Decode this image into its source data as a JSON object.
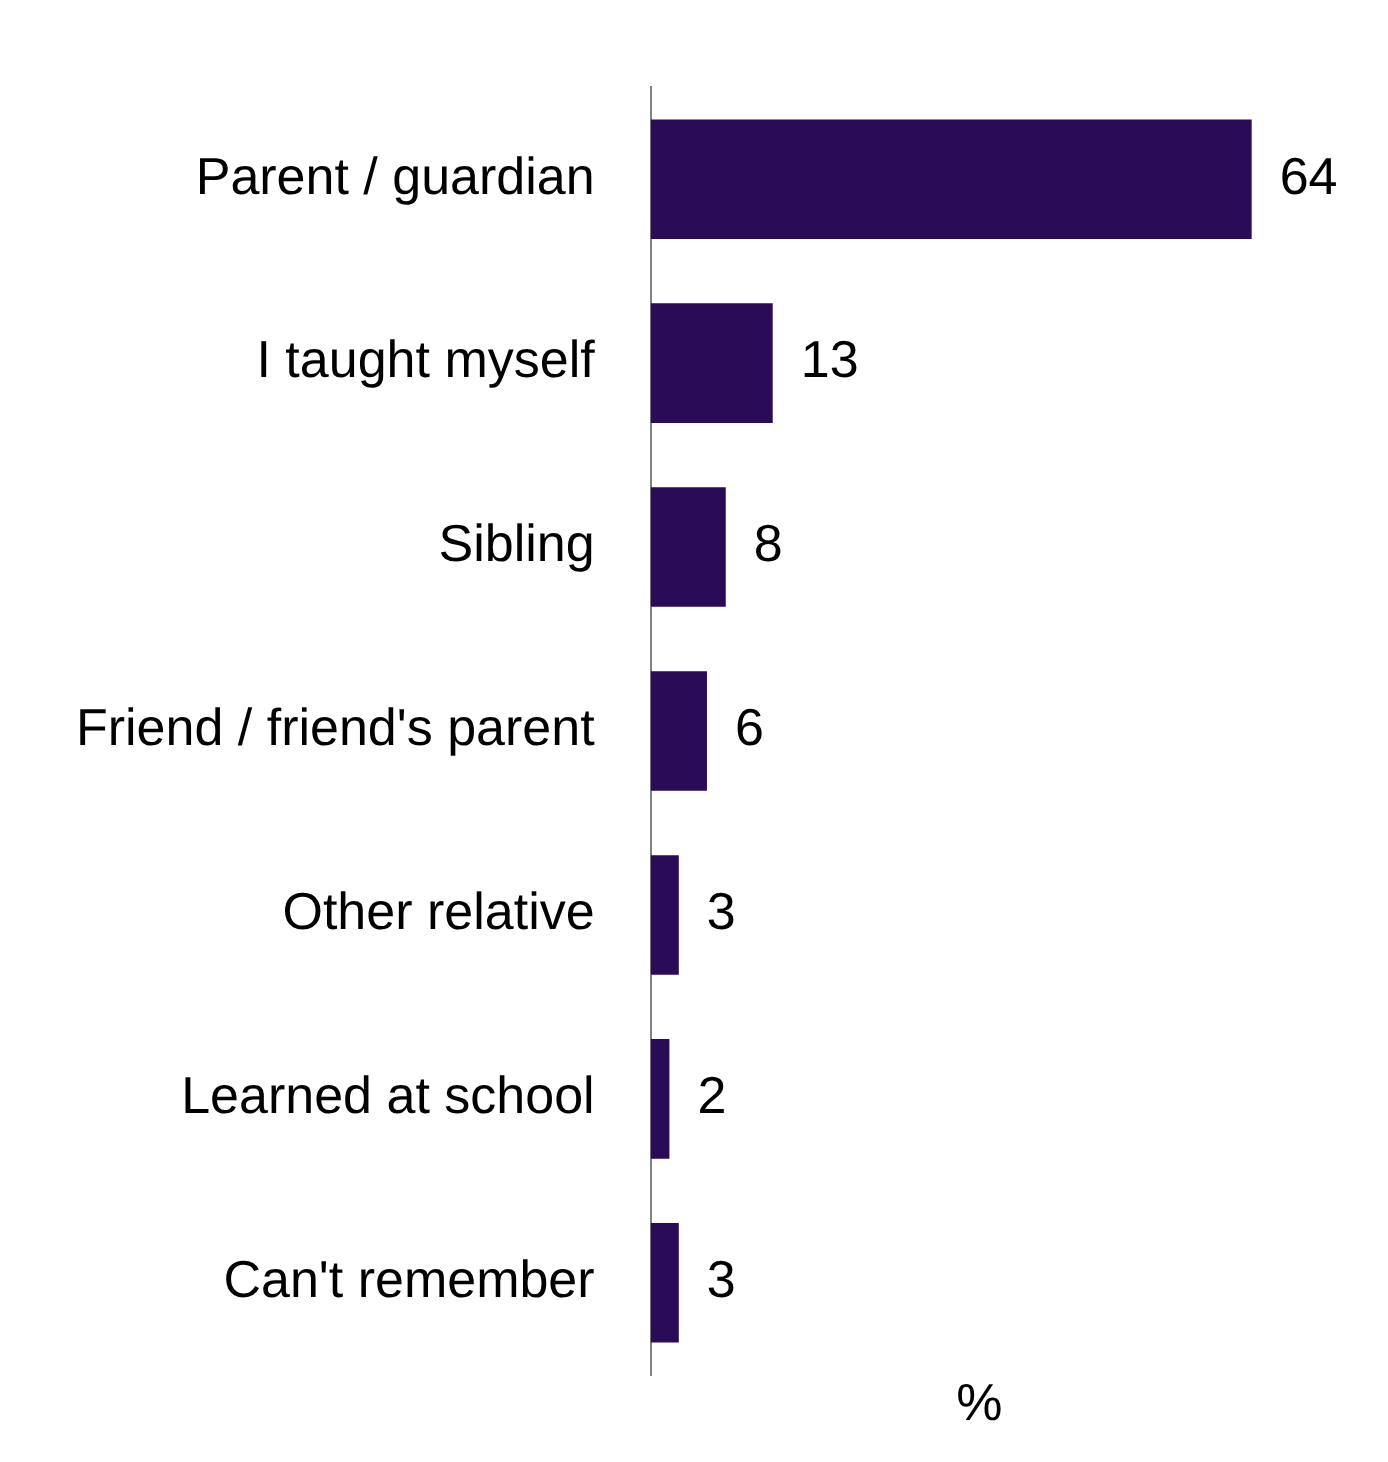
{
  "chart_data": {
    "type": "bar",
    "orientation": "horizontal",
    "xlabel": "%",
    "categories": [
      "Parent / guardian",
      "I taught myself",
      "Sibling",
      "Friend / friend's parent",
      "Other relative",
      "Learned at school",
      "Can't remember"
    ],
    "values": [
      64,
      13,
      8,
      6,
      3,
      2,
      3
    ],
    "color": "#2a0b57",
    "data_labels": true,
    "grid": false,
    "legend": false,
    "tick_labels": "y"
  }
}
